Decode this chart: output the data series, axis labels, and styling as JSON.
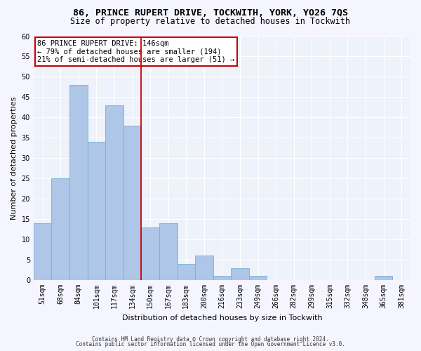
{
  "title1": "86, PRINCE RUPERT DRIVE, TOCKWITH, YORK, YO26 7QS",
  "title2": "Size of property relative to detached houses in Tockwith",
  "xlabel": "Distribution of detached houses by size in Tockwith",
  "ylabel": "Number of detached properties",
  "categories": [
    "51sqm",
    "68sqm",
    "84sqm",
    "101sqm",
    "117sqm",
    "134sqm",
    "150sqm",
    "167sqm",
    "183sqm",
    "200sqm",
    "216sqm",
    "233sqm",
    "249sqm",
    "266sqm",
    "282sqm",
    "299sqm",
    "315sqm",
    "332sqm",
    "348sqm",
    "365sqm",
    "381sqm"
  ],
  "values": [
    14,
    25,
    48,
    34,
    43,
    38,
    13,
    14,
    4,
    6,
    1,
    3,
    1,
    0,
    0,
    0,
    0,
    0,
    0,
    1,
    0
  ],
  "bar_color": "#aec6e8",
  "bar_edge_color": "#7aafd4",
  "vline_x_idx": 5,
  "vline_color": "#cc0000",
  "annotation_lines": [
    "86 PRINCE RUPERT DRIVE: 146sqm",
    "← 79% of detached houses are smaller (194)",
    "21% of semi-detached houses are larger (51) →"
  ],
  "annotation_box_color": "#cc0000",
  "ylim": [
    0,
    60
  ],
  "yticks": [
    0,
    5,
    10,
    15,
    20,
    25,
    30,
    35,
    40,
    45,
    50,
    55,
    60
  ],
  "footer1": "Contains HM Land Registry data © Crown copyright and database right 2024.",
  "footer2": "Contains public sector information licensed under the Open Government Licence v3.0.",
  "bg_color": "#eef2fb",
  "grid_color": "#ffffff",
  "title1_fontsize": 9.5,
  "title2_fontsize": 8.5,
  "tick_fontsize": 7,
  "ylabel_fontsize": 8,
  "xlabel_fontsize": 8,
  "annotation_fontsize": 7.5,
  "footer_fontsize": 5.5
}
